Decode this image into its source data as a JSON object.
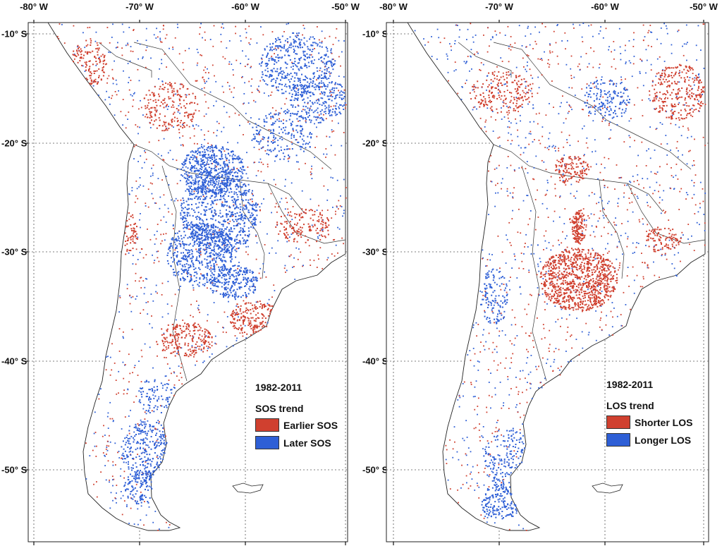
{
  "axes": {
    "lon_labels": [
      "-80° W",
      "-70° W",
      "-60° W",
      "-50° W"
    ],
    "lat_labels": [
      "-10° S",
      "-20° S",
      "-30° S",
      "-40° S",
      "-50° S"
    ]
  },
  "colors": {
    "negative": "#d0402f",
    "positive": "#2e5fd6",
    "border": "#222222",
    "grid": "#555555"
  },
  "panels": [
    {
      "id": "sos",
      "legend": {
        "period": "1982-2011",
        "title": "SOS trend",
        "items": [
          {
            "label": "Earlier SOS",
            "color": "#d0402f"
          },
          {
            "label": "Later SOS",
            "color": "#2e5fd6"
          }
        ]
      }
    },
    {
      "id": "los",
      "legend": {
        "period": "1982-2011",
        "title": "LOS trend",
        "items": [
          {
            "label": "Shorter LOS",
            "color": "#d0402f"
          },
          {
            "label": "Longer LOS",
            "color": "#2e5fd6"
          }
        ]
      }
    }
  ]
}
